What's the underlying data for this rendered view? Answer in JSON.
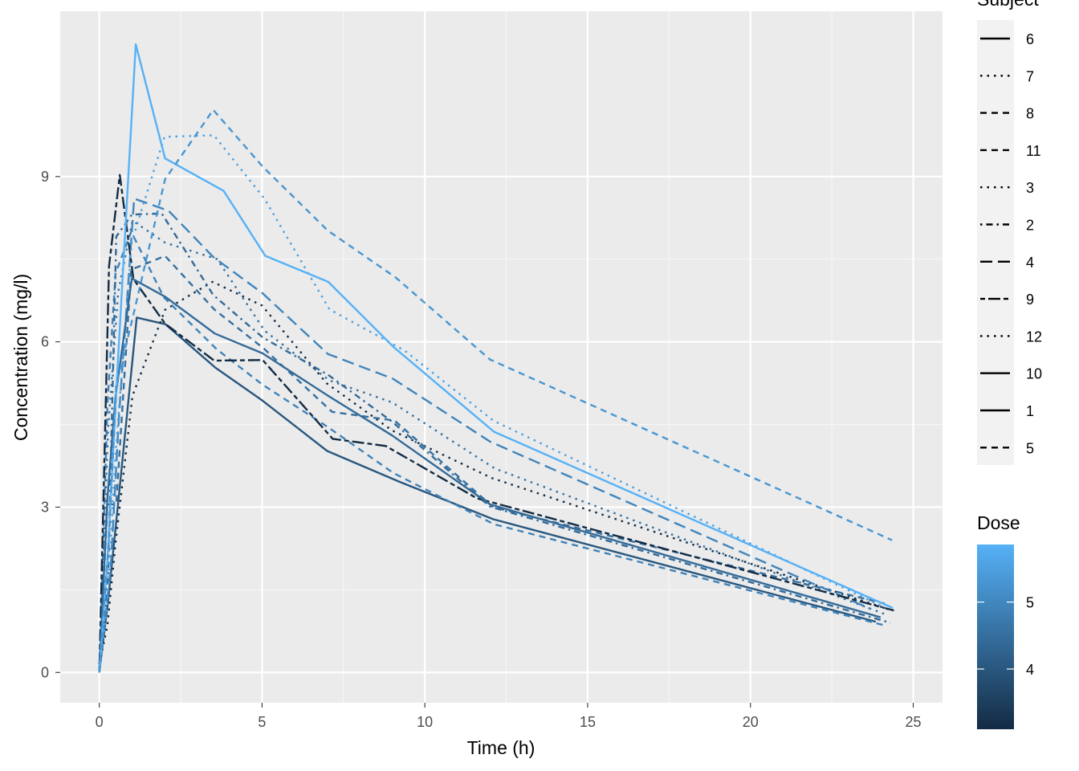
{
  "chart_data": {
    "type": "line",
    "xlabel": "Time (h)",
    "ylabel": "Concentration (mg/l)",
    "xlim": [
      -1.2,
      25.9
    ],
    "ylim": [
      -0.55,
      12.0
    ],
    "x_ticks": [
      0,
      5,
      10,
      15,
      20,
      25
    ],
    "y_ticks": [
      0,
      3,
      6,
      9
    ],
    "grid": true,
    "legend_position": "right",
    "legend_linetype": {
      "title": "Subject",
      "entries": [
        {
          "label": "6",
          "linetype": "solid"
        },
        {
          "label": "7",
          "linetype": "dotted"
        },
        {
          "label": "8",
          "linetype": "dashed"
        },
        {
          "label": "11",
          "linetype": "dashed"
        },
        {
          "label": "3",
          "linetype": "dotted"
        },
        {
          "label": "2",
          "linetype": "dotdash"
        },
        {
          "label": "4",
          "linetype": "longdash"
        },
        {
          "label": "9",
          "linetype": "twodash"
        },
        {
          "label": "12",
          "linetype": "dotted"
        },
        {
          "label": "10",
          "linetype": "solid"
        },
        {
          "label": "1",
          "linetype": "solid"
        },
        {
          "label": "5",
          "linetype": "dashed"
        }
      ]
    },
    "legend_color": {
      "title": "Dose",
      "low": 3.1,
      "high": 5.86,
      "ticks": [
        4,
        5
      ],
      "color_low": "#132b43",
      "color_high": "#56b1f7"
    },
    "series": [
      {
        "name": "6",
        "dose": 4.0,
        "linetype": "solid",
        "x": [
          0,
          0.27,
          0.58,
          1.15,
          2.03,
          3.57,
          5.0,
          7.0,
          9.22,
          12.1,
          23.85
        ],
        "y": [
          0.0,
          1.29,
          3.08,
          6.44,
          6.32,
          5.53,
          4.94,
          4.02,
          3.46,
          2.78,
          0.92
        ]
      },
      {
        "name": "7",
        "dose": 3.1,
        "linetype": "dotted",
        "x": [
          0,
          0.25,
          0.5,
          1.02,
          2.02,
          3.48,
          5.0,
          6.98,
          9.0,
          12.05,
          24.22
        ],
        "y": [
          0.15,
          0.85,
          2.35,
          5.02,
          6.58,
          7.09,
          6.66,
          5.25,
          4.39,
          3.53,
          1.15
        ]
      },
      {
        "name": "8",
        "dose": 4.53,
        "linetype": "dashed",
        "x": [
          0,
          0.25,
          0.52,
          0.98,
          2.02,
          3.53,
          5.05,
          7.15,
          9.07,
          12.1,
          24.12
        ],
        "y": [
          0.0,
          3.05,
          3.05,
          7.31,
          7.56,
          6.59,
          5.88,
          4.73,
          4.57,
          3.0,
          1.25
        ]
      },
      {
        "name": "11",
        "dose": 4.92,
        "linetype": "dashed",
        "x": [
          0,
          0.25,
          0.5,
          0.98,
          1.98,
          3.6,
          5.02,
          7.03,
          9.03,
          12.12,
          24.08
        ],
        "y": [
          0.0,
          4.86,
          7.24,
          8.0,
          6.81,
          5.87,
          5.22,
          4.45,
          3.62,
          2.69,
          0.86
        ]
      },
      {
        "name": "3",
        "dose": 4.53,
        "linetype": "dotted",
        "x": [
          0,
          0.27,
          0.58,
          1.02,
          2.02,
          3.62,
          5.08,
          7.07,
          9.0,
          12.15,
          24.17
        ],
        "y": [
          0.0,
          4.4,
          6.9,
          8.2,
          7.8,
          7.5,
          6.2,
          5.3,
          4.9,
          3.7,
          1.05
        ]
      },
      {
        "name": "2",
        "dose": 4.4,
        "linetype": "dotdash",
        "x": [
          0,
          0.27,
          0.52,
          1.0,
          1.92,
          3.5,
          5.02,
          7.03,
          9.0,
          12.0,
          24.3
        ],
        "y": [
          0.0,
          1.72,
          7.91,
          8.31,
          8.33,
          6.85,
          6.08,
          5.4,
          4.55,
          3.01,
          0.9
        ]
      },
      {
        "name": "4",
        "dose": 4.95,
        "linetype": "longdash",
        "x": [
          0,
          0.35,
          0.6,
          1.07,
          2.13,
          3.5,
          5.02,
          7.02,
          9.02,
          12.0,
          23.7
        ],
        "y": [
          0.0,
          1.89,
          4.6,
          8.6,
          8.38,
          7.54,
          6.88,
          5.78,
          5.33,
          4.19,
          1.15
        ]
      },
      {
        "name": "9",
        "dose": 3.1,
        "linetype": "twodash",
        "x": [
          0,
          0.3,
          0.63,
          1.05,
          2.02,
          3.53,
          5.02,
          7.17,
          8.8,
          11.6,
          24.43
        ],
        "y": [
          0.0,
          7.37,
          9.03,
          7.14,
          6.33,
          5.66,
          5.67,
          4.24,
          4.11,
          3.16,
          1.12
        ]
      },
      {
        "name": "12",
        "dose": 5.5,
        "linetype": "dotted",
        "x": [
          0,
          0.25,
          0.5,
          1.0,
          2.0,
          3.52,
          5.07,
          7.07,
          9.38,
          12.1,
          24.15
        ],
        "y": [
          0.0,
          1.25,
          3.96,
          7.82,
          9.72,
          9.75,
          8.6,
          6.59,
          5.84,
          4.57,
          1.17
        ]
      },
      {
        "name": "10",
        "dose": 4.4,
        "linetype": "solid",
        "x": [
          0,
          0.25,
          0.5,
          1.0,
          2.02,
          3.55,
          5.02,
          7.03,
          9.0,
          12.0,
          24.0
        ],
        "y": [
          0.0,
          3.16,
          5.0,
          7.15,
          6.82,
          6.15,
          5.79,
          5.02,
          4.3,
          3.05,
          1.0
        ]
      },
      {
        "name": "1",
        "dose": 5.86,
        "linetype": "solid",
        "x": [
          0,
          0.25,
          0.57,
          1.12,
          2.02,
          3.82,
          5.1,
          7.03,
          9.05,
          12.12,
          24.37
        ],
        "y": [
          0.0,
          2.02,
          5.63,
          11.4,
          9.33,
          8.74,
          7.56,
          7.09,
          5.9,
          4.37,
          1.17
        ]
      },
      {
        "name": "5",
        "dose": 5.3,
        "linetype": "dashed",
        "x": [
          0,
          0.3,
          0.52,
          1.0,
          2.02,
          3.5,
          5.02,
          7.02,
          9.1,
          12.0,
          24.35
        ],
        "y": [
          0.0,
          2.42,
          5.22,
          6.37,
          8.95,
          10.21,
          9.18,
          8.02,
          7.17,
          5.68,
          2.4
        ]
      }
    ]
  }
}
